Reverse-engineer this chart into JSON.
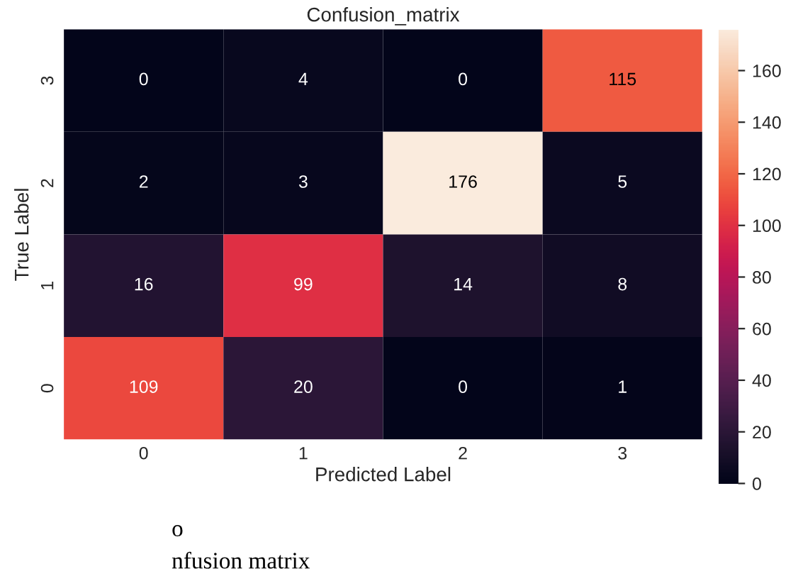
{
  "chart_data": {
    "type": "heatmap",
    "title": "Confusion_matrix",
    "xlabel": "Predicted Label",
    "ylabel": "True Label",
    "categories": [
      "0",
      "1",
      "2",
      "3"
    ],
    "y_categories": [
      "3",
      "2",
      "1",
      "0"
    ],
    "cells": [
      [
        0,
        4,
        0,
        115
      ],
      [
        2,
        3,
        176,
        5
      ],
      [
        16,
        99,
        14,
        8
      ],
      [
        109,
        20,
        0,
        1
      ]
    ],
    "data_labels": true,
    "clim": [
      0,
      176
    ],
    "cticks": [
      0,
      20,
      40,
      60,
      80,
      100,
      120,
      140,
      160
    ],
    "annotations": [
      "o",
      "nfusion matrix"
    ]
  }
}
